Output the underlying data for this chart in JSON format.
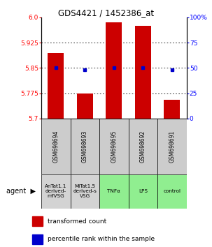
{
  "title": "GDS4421 / 1452386_at",
  "samples": [
    "GSM698694",
    "GSM698693",
    "GSM698695",
    "GSM698692",
    "GSM698691"
  ],
  "agents": [
    "AnTat1.1\nderived-\nmfVSG",
    "MiTat1.5\nderived-s\nVSG",
    "TNFα",
    "LPS",
    "control"
  ],
  "agent_colors": [
    "#d3d3d3",
    "#d3d3d3",
    "#90ee90",
    "#90ee90",
    "#90ee90"
  ],
  "red_values": [
    5.895,
    5.775,
    5.985,
    5.975,
    5.755
  ],
  "blue_values": [
    5.85,
    5.845,
    5.85,
    5.85,
    5.845
  ],
  "y_min": 5.7,
  "y_max": 6.0,
  "y_ticks_left": [
    5.7,
    5.775,
    5.85,
    5.925,
    6.0
  ],
  "y_ticks_right": [
    0,
    25,
    50,
    75,
    100
  ],
  "bar_color": "#cc0000",
  "dot_color": "#0000cc",
  "legend_bar_label": "transformed count",
  "legend_dot_label": "percentile rank within the sample",
  "gridlines": [
    5.925,
    5.85,
    5.775
  ]
}
